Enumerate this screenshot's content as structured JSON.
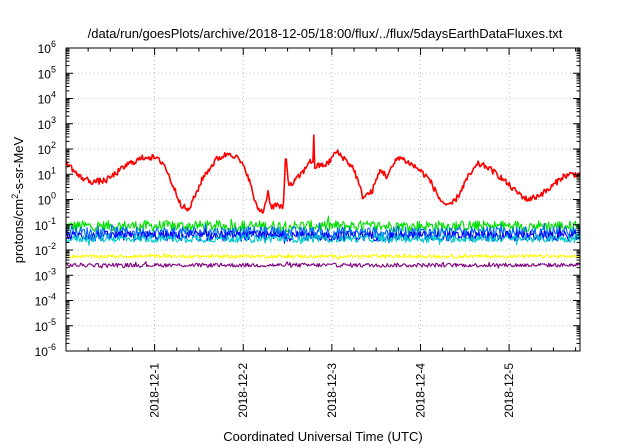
{
  "chart_data": {
    "type": "line",
    "title": "/data/run/goesPlots/archive/2018-12-05/18:00/flux/../flux/5daysEarthDataFluxes.txt",
    "xlabel": "Coordinated Universal Time (UTC)",
    "ylabel_parts": {
      "base": "protons/cm",
      "sup": "2",
      "rest": "-s-sr-MeV"
    },
    "x_range_days": [
      0,
      5.8
    ],
    "y_scale": "log",
    "ylim": [
      1e-06,
      1000000.0
    ],
    "grid": true,
    "legend": "none",
    "y_ticks": [
      {
        "value": -6,
        "base": "10",
        "exp": "-6"
      },
      {
        "value": -5,
        "base": "10",
        "exp": "-5"
      },
      {
        "value": -4,
        "base": "10",
        "exp": "-4"
      },
      {
        "value": -3,
        "base": "10",
        "exp": "-3"
      },
      {
        "value": -2,
        "base": "10",
        "exp": "-2"
      },
      {
        "value": -1,
        "base": "10",
        "exp": "-1"
      },
      {
        "value": 0,
        "base": "10",
        "exp": "0"
      },
      {
        "value": 1,
        "base": "10",
        "exp": "1"
      },
      {
        "value": 2,
        "base": "10",
        "exp": "2"
      },
      {
        "value": 3,
        "base": "10",
        "exp": "3"
      },
      {
        "value": 4,
        "base": "10",
        "exp": "4"
      },
      {
        "value": 5,
        "base": "10",
        "exp": "5"
      },
      {
        "value": 6,
        "base": "10",
        "exp": "6"
      }
    ],
    "x_ticks": [
      {
        "value": 1.0,
        "label": "2018-12-1"
      },
      {
        "value": 2.0,
        "label": "2018-12-2"
      },
      {
        "value": 3.0,
        "label": "2018-12-3"
      },
      {
        "value": 4.0,
        "label": "2018-12-4"
      },
      {
        "value": 5.0,
        "label": "2018-12-5"
      }
    ],
    "series": [
      {
        "color": "#ff0000",
        "log_base_points": [
          [
            0.0,
            1.5
          ],
          [
            0.15,
            0.9
          ],
          [
            0.3,
            0.7
          ],
          [
            0.45,
            0.75
          ],
          [
            0.55,
            1.0
          ],
          [
            0.7,
            1.4
          ],
          [
            0.9,
            1.7
          ],
          [
            1.0,
            1.65
          ],
          [
            1.1,
            1.45
          ],
          [
            1.2,
            0.6
          ],
          [
            1.3,
            -0.2
          ],
          [
            1.38,
            -0.45
          ],
          [
            1.45,
            0.1
          ],
          [
            1.55,
            0.9
          ],
          [
            1.7,
            1.6
          ],
          [
            1.85,
            1.85
          ],
          [
            1.95,
            1.6
          ],
          [
            2.05,
            1.0
          ],
          [
            2.15,
            -0.3
          ],
          [
            2.22,
            -0.5
          ],
          [
            2.28,
            0.2
          ],
          [
            2.32,
            -0.3
          ],
          [
            2.38,
            -0.2
          ],
          [
            2.45,
            -0.4
          ],
          [
            2.48,
            1.6
          ],
          [
            2.52,
            0.5
          ],
          [
            2.6,
            0.8
          ],
          [
            2.7,
            1.2
          ],
          [
            2.75,
            1.6
          ],
          [
            2.8,
            1.3
          ],
          [
            2.95,
            1.4
          ],
          [
            3.05,
            1.9
          ],
          [
            3.15,
            1.6
          ],
          [
            3.25,
            1.2
          ],
          [
            3.35,
            0.1
          ],
          [
            3.45,
            0.3
          ],
          [
            3.55,
            1.2
          ],
          [
            3.62,
            0.9
          ],
          [
            3.75,
            1.7
          ],
          [
            3.85,
            1.5
          ],
          [
            3.98,
            1.2
          ],
          [
            4.1,
            0.8
          ],
          [
            4.22,
            0.0
          ],
          [
            4.32,
            -0.3
          ],
          [
            4.42,
            0.1
          ],
          [
            4.52,
            0.8
          ],
          [
            4.65,
            1.4
          ],
          [
            4.75,
            1.3
          ],
          [
            4.9,
            0.9
          ],
          [
            5.05,
            0.4
          ],
          [
            5.2,
            0.0
          ],
          [
            5.3,
            0.1
          ],
          [
            5.45,
            0.4
          ],
          [
            5.6,
            0.9
          ],
          [
            5.7,
            1.0
          ],
          [
            5.8,
            1.0
          ]
        ],
        "spikes": [
          [
            2.8,
            2.55
          ],
          [
            2.48,
            1.6
          ],
          [
            2.28,
            0.35
          ]
        ],
        "noise": 0.12
      },
      {
        "color": "#00e000",
        "log_base": -1.05,
        "noise": 0.22
      },
      {
        "color": "#00cccc",
        "log_base": -1.55,
        "noise": 0.15
      },
      {
        "color": "#0000ff",
        "log_base": -1.45,
        "noise": 0.2
      },
      {
        "color": "#0066ff",
        "log_base": -1.3,
        "noise": 0.22
      },
      {
        "color": "#ffff00",
        "log_base": -2.25,
        "noise": 0.07
      },
      {
        "color": "#800080",
        "log_base": -2.6,
        "noise": 0.08
      }
    ]
  }
}
